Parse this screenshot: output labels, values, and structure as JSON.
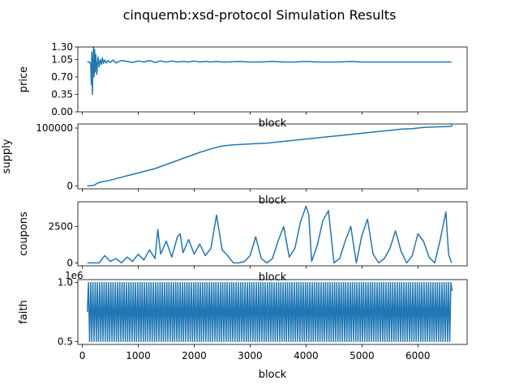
{
  "title": "cinquemb:xsd-protocol Simulation Results",
  "line_color": "#1f77b4",
  "chart_data": [
    {
      "type": "line",
      "ylabel": "price",
      "xlabel": "block",
      "xlim": [
        -80,
        6880
      ],
      "ylim": [
        0.0,
        1.3
      ],
      "yticks": [
        0.0,
        0.35,
        0.7,
        1.05,
        1.3
      ],
      "ytick_labels": [
        "0.00",
        "0.35",
        "0.70",
        "1.05",
        "1.30"
      ],
      "x": [
        90,
        130,
        150,
        160,
        170,
        180,
        190,
        200,
        210,
        220,
        230,
        240,
        260,
        280,
        300,
        320,
        340,
        360,
        380,
        400,
        430,
        460,
        500,
        550,
        600,
        700,
        800,
        900,
        1000,
        1100,
        1200,
        1300,
        1400,
        1500,
        1600,
        1700,
        1800,
        1900,
        2000,
        2100,
        2200,
        2300,
        2400,
        2500,
        2600,
        2800,
        3000,
        3200,
        3400,
        3600,
        3800,
        4000,
        4200,
        4400,
        4600,
        4800,
        5000,
        5200,
        5400,
        5600,
        5800,
        6000,
        6200,
        6400,
        6600
      ],
      "values": [
        1.0,
        1.0,
        0.95,
        0.55,
        1.2,
        0.35,
        0.9,
        1.3,
        0.7,
        1.25,
        0.8,
        1.15,
        0.75,
        1.1,
        0.9,
        1.05,
        0.95,
        1.08,
        0.97,
        1.04,
        0.98,
        1.03,
        0.99,
        1.04,
        0.98,
        1.03,
        1.01,
        0.99,
        1.02,
        1.0,
        1.03,
        0.99,
        1.02,
        1.0,
        1.02,
        1.0,
        1.01,
        1.0,
        1.02,
        1.0,
        1.01,
        1.0,
        1.01,
        1.0,
        1.0,
        1.01,
        1.0,
        1.0,
        1.01,
        1.0,
        1.0,
        1.01,
        1.0,
        1.0,
        1.0,
        1.01,
        1.0,
        1.0,
        1.0,
        1.0,
        1.0,
        1.0,
        1.0,
        1.0,
        1.0
      ]
    },
    {
      "type": "line",
      "ylabel": "supply",
      "xlabel": "block",
      "xlim": [
        -80,
        6880
      ],
      "ylim": [
        -5000,
        107000
      ],
      "yticks": [
        0,
        100000
      ],
      "ytick_labels": [
        "0",
        "100000"
      ],
      "x": [
        90,
        200,
        300,
        500,
        700,
        900,
        1100,
        1300,
        1500,
        1700,
        1900,
        2100,
        2300,
        2500,
        2700,
        2900,
        3100,
        3300,
        3500,
        3700,
        3900,
        4100,
        4300,
        4500,
        4700,
        4900,
        5100,
        5300,
        5500,
        5700,
        5900,
        6100,
        6300,
        6500,
        6600,
        6610
      ],
      "values": [
        0,
        1000,
        6000,
        10000,
        15000,
        20000,
        25000,
        30000,
        37000,
        44000,
        51000,
        58000,
        64000,
        69000,
        71000,
        72000,
        73000,
        74000,
        76000,
        78000,
        80000,
        82000,
        84000,
        86000,
        88000,
        90000,
        92000,
        94000,
        96000,
        98000,
        99000,
        101000,
        102000,
        102500,
        103000,
        106000
      ]
    },
    {
      "type": "line",
      "ylabel": "coupons",
      "xlabel": "block",
      "xlim": [
        -80,
        6880
      ],
      "ylim": [
        -200,
        4200
      ],
      "yticks": [
        0,
        2500
      ],
      "ytick_labels": [
        "0",
        "2500"
      ],
      "x": [
        90,
        300,
        400,
        500,
        600,
        700,
        800,
        900,
        1000,
        1100,
        1200,
        1300,
        1350,
        1400,
        1500,
        1600,
        1700,
        1750,
        1800,
        1900,
        2000,
        2100,
        2200,
        2300,
        2400,
        2500,
        2600,
        2700,
        2800,
        2900,
        3000,
        3100,
        3200,
        3300,
        3400,
        3500,
        3600,
        3700,
        3800,
        3900,
        4000,
        4050,
        4100,
        4200,
        4300,
        4400,
        4500,
        4600,
        4700,
        4800,
        4900,
        5000,
        5100,
        5200,
        5300,
        5400,
        5500,
        5600,
        5700,
        5800,
        5900,
        6000,
        6100,
        6200,
        6300,
        6400,
        6500,
        6550,
        6600
      ],
      "values": [
        0,
        0,
        500,
        100,
        300,
        0,
        400,
        100,
        600,
        200,
        900,
        300,
        2300,
        600,
        1500,
        400,
        1800,
        2000,
        700,
        1600,
        600,
        1300,
        500,
        1000,
        3300,
        900,
        500,
        0,
        0,
        100,
        500,
        1800,
        300,
        0,
        300,
        1500,
        2500,
        400,
        1000,
        2800,
        3900,
        3300,
        100,
        1200,
        2900,
        3600,
        0,
        300,
        1500,
        2500,
        0,
        1900,
        3000,
        600,
        0,
        300,
        1000,
        2200,
        800,
        0,
        500,
        2000,
        1500,
        400,
        0,
        1600,
        3500,
        600,
        0
      ]
    },
    {
      "type": "line",
      "ylabel": "faith",
      "xlabel": "block",
      "offset_label": "1e6",
      "xlim": [
        -80,
        6880
      ],
      "ylim": [
        475000,
        1025000
      ],
      "yticks": [
        500000,
        1000000
      ],
      "ytick_labels": [
        "0.5",
        "1.0"
      ],
      "xticks": [
        0,
        1000,
        2000,
        3000,
        4000,
        5000,
        6000
      ],
      "xtick_labels": [
        "0",
        "1000",
        "2000",
        "3000",
        "4000",
        "5000",
        "6000"
      ],
      "oscillation": {
        "x_start": 90,
        "x_end": 6610,
        "period": 40,
        "low": 500000,
        "high": 1000000,
        "start_value": 750000,
        "end_value": 930000
      }
    }
  ]
}
